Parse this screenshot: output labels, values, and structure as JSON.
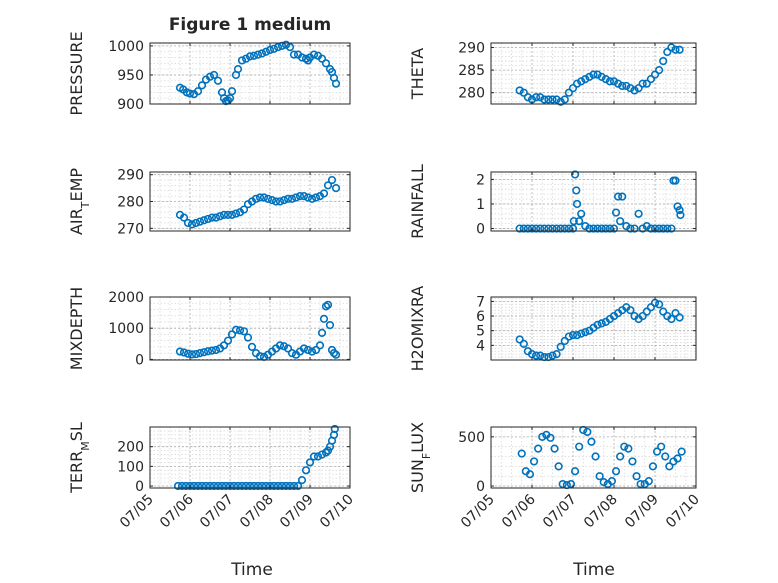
{
  "title": "Figure 1 medium",
  "colors": {
    "marker": "#0072BD",
    "axis": "#262626",
    "grid": "#b0b0b0",
    "minorGrid": "#d8d8d8"
  },
  "xaxis": {
    "ticks": [
      5,
      6,
      7,
      8,
      9,
      10
    ],
    "tick_labels": [
      "07/05",
      "07/06",
      "07/07",
      "07/08",
      "07/09",
      "07/10"
    ],
    "label": "Time",
    "range": [
      5,
      10
    ]
  },
  "chart_data": [
    {
      "type": "scatter",
      "ylabel": "PRESSURE",
      "ylim": [
        900,
        1005
      ],
      "yticks": [
        900,
        950,
        1000
      ],
      "ytick_labels": [
        "900",
        "950",
        "1000"
      ],
      "grid": true,
      "x": [
        5.75,
        5.83,
        5.92,
        6.0,
        6.1,
        6.2,
        6.3,
        6.4,
        6.5,
        6.6,
        6.7,
        6.8,
        6.85,
        6.9,
        6.95,
        7.0,
        7.05,
        7.15,
        7.2,
        7.3,
        7.4,
        7.5,
        7.6,
        7.7,
        7.8,
        7.9,
        8.0,
        8.1,
        8.2,
        8.3,
        8.4,
        8.5,
        8.6,
        8.7,
        8.8,
        8.9,
        8.95,
        9.0,
        9.1,
        9.2,
        9.3,
        9.4,
        9.5,
        9.55,
        9.6,
        9.65
      ],
      "y": [
        928,
        925,
        920,
        918,
        917,
        922,
        932,
        942,
        947,
        950,
        940,
        920,
        910,
        905,
        906,
        910,
        922,
        950,
        960,
        975,
        978,
        982,
        983,
        985,
        987,
        990,
        993,
        995,
        998,
        1000,
        1002,
        998,
        985,
        985,
        980,
        978,
        975,
        980,
        985,
        983,
        978,
        970,
        960,
        955,
        945,
        935
      ]
    },
    {
      "type": "scatter",
      "ylabel": "THETA",
      "ylim": [
        277.5,
        291
      ],
      "yticks": [
        280,
        285,
        290
      ],
      "ytick_labels": [
        "280",
        "285",
        "290"
      ],
      "grid": true,
      "x": [
        5.7,
        5.8,
        5.9,
        6.0,
        6.1,
        6.2,
        6.3,
        6.4,
        6.5,
        6.6,
        6.7,
        6.8,
        6.9,
        7.0,
        7.1,
        7.2,
        7.3,
        7.4,
        7.5,
        7.6,
        7.7,
        7.8,
        7.9,
        8.0,
        8.1,
        8.2,
        8.3,
        8.4,
        8.5,
        8.6,
        8.7,
        8.8,
        8.9,
        9.0,
        9.1,
        9.2,
        9.3,
        9.4,
        9.5,
        9.6
      ],
      "y": [
        280.5,
        280,
        279,
        278.5,
        279,
        279,
        278.5,
        278.5,
        278.5,
        278.5,
        278,
        278.5,
        280,
        281,
        282,
        282.5,
        283,
        283.5,
        284,
        284,
        283.5,
        283,
        282.5,
        282.5,
        282,
        281.5,
        281.5,
        281,
        280.5,
        281,
        282,
        282,
        283,
        284,
        285,
        287,
        289,
        290,
        289.5,
        289.5
      ]
    },
    {
      "type": "scatter",
      "ylabel": "AIR_TEMP",
      "ylim": [
        269,
        291
      ],
      "yticks": [
        270,
        280,
        290
      ],
      "ytick_labels": [
        "270",
        "280",
        "290"
      ],
      "grid": true,
      "x": [
        5.75,
        5.85,
        5.95,
        6.05,
        6.15,
        6.25,
        6.35,
        6.45,
        6.55,
        6.65,
        6.75,
        6.85,
        6.95,
        7.05,
        7.15,
        7.25,
        7.35,
        7.45,
        7.55,
        7.65,
        7.75,
        7.85,
        7.95,
        8.05,
        8.15,
        8.25,
        8.35,
        8.45,
        8.55,
        8.65,
        8.75,
        8.85,
        8.95,
        9.05,
        9.15,
        9.25,
        9.35,
        9.45,
        9.55,
        9.65
      ],
      "y": [
        275,
        274,
        272,
        271.5,
        272,
        272.5,
        273,
        273.5,
        274,
        274,
        274.5,
        275,
        275,
        275,
        275.5,
        276,
        277,
        279,
        280,
        281,
        281.5,
        281.5,
        281,
        280.5,
        280,
        280,
        280.5,
        281,
        281,
        281.5,
        282,
        282,
        281.5,
        281,
        281.5,
        282,
        283,
        286,
        288,
        285
      ]
    },
    {
      "type": "scatter",
      "ylabel": "RAINFALL",
      "ylim": [
        -0.1,
        2.3
      ],
      "yticks": [
        0,
        1,
        2
      ],
      "ytick_labels": [
        "0",
        "1",
        "2"
      ],
      "grid": true,
      "x": [
        5.7,
        5.8,
        5.9,
        6.0,
        6.1,
        6.2,
        6.3,
        6.4,
        6.5,
        6.6,
        6.7,
        6.8,
        6.9,
        7.0,
        7.02,
        7.05,
        7.08,
        7.1,
        7.15,
        7.2,
        7.3,
        7.4,
        7.5,
        7.6,
        7.7,
        7.8,
        7.9,
        8.0,
        8.05,
        8.1,
        8.15,
        8.2,
        8.3,
        8.4,
        8.5,
        8.6,
        8.7,
        8.8,
        8.9,
        9.0,
        9.1,
        9.2,
        9.3,
        9.4,
        9.45,
        9.5,
        9.55,
        9.6,
        9.62
      ],
      "y": [
        0,
        0,
        0,
        0,
        0,
        0,
        0,
        0,
        0,
        0,
        0,
        0,
        0,
        0,
        0.3,
        2.2,
        1.55,
        1.0,
        0.3,
        0.6,
        0.1,
        0,
        0,
        0,
        0,
        0,
        0,
        0,
        0.65,
        1.3,
        0.3,
        1.3,
        0.1,
        0,
        0,
        0.6,
        0,
        0.1,
        0,
        0,
        0,
        0,
        0,
        0,
        1.95,
        1.95,
        0.9,
        0.75,
        0.55
      ]
    },
    {
      "type": "scatter",
      "ylabel": "MIXDEPTH",
      "ylim": [
        -20,
        2000
      ],
      "yticks": [
        0,
        1000,
        2000
      ],
      "ytick_labels": [
        "0",
        "1000",
        "2000"
      ],
      "grid": true,
      "x": [
        5.75,
        5.85,
        5.95,
        6.05,
        6.15,
        6.25,
        6.35,
        6.45,
        6.55,
        6.65,
        6.75,
        6.85,
        6.95,
        7.05,
        7.15,
        7.25,
        7.35,
        7.45,
        7.55,
        7.65,
        7.75,
        7.85,
        7.95,
        8.05,
        8.15,
        8.25,
        8.35,
        8.45,
        8.55,
        8.65,
        8.75,
        8.85,
        8.95,
        9.05,
        9.15,
        9.25,
        9.3,
        9.35,
        9.4,
        9.45,
        9.5,
        9.55,
        9.6,
        9.65
      ],
      "y": [
        250,
        220,
        180,
        160,
        170,
        200,
        230,
        260,
        280,
        300,
        350,
        450,
        600,
        800,
        950,
        930,
        900,
        700,
        400,
        200,
        100,
        80,
        150,
        250,
        350,
        450,
        420,
        350,
        200,
        150,
        250,
        350,
        300,
        250,
        300,
        450,
        850,
        1300,
        1700,
        1750,
        1100,
        300,
        200,
        150
      ]
    },
    {
      "type": "scatter",
      "ylabel": "H2OMIXRA",
      "ylim": [
        3,
        7.3
      ],
      "yticks": [
        4,
        5,
        6,
        7
      ],
      "ytick_labels": [
        "4",
        "5",
        "6",
        "7"
      ],
      "grid": true,
      "x": [
        5.7,
        5.8,
        5.9,
        6.0,
        6.1,
        6.2,
        6.3,
        6.4,
        6.5,
        6.6,
        6.7,
        6.8,
        6.9,
        7.0,
        7.1,
        7.2,
        7.3,
        7.4,
        7.5,
        7.6,
        7.7,
        7.8,
        7.9,
        8.0,
        8.1,
        8.2,
        8.3,
        8.4,
        8.5,
        8.6,
        8.7,
        8.8,
        8.9,
        9.0,
        9.1,
        9.2,
        9.3,
        9.4,
        9.5,
        9.6
      ],
      "y": [
        4.4,
        4.1,
        3.6,
        3.4,
        3.3,
        3.3,
        3.2,
        3.2,
        3.3,
        3.4,
        3.9,
        4.3,
        4.6,
        4.7,
        4.7,
        4.8,
        4.9,
        5.0,
        5.2,
        5.4,
        5.5,
        5.6,
        5.8,
        6.0,
        6.2,
        6.4,
        6.6,
        6.4,
        6.0,
        5.8,
        6.0,
        6.3,
        6.6,
        6.9,
        6.8,
        6.3,
        6.0,
        5.8,
        6.2,
        5.9
      ]
    },
    {
      "type": "scatter",
      "ylabel": "TERR_MSL",
      "ylim": [
        -10,
        300
      ],
      "yticks": [
        0,
        100,
        200
      ],
      "ytick_labels": [
        "0",
        "100",
        "200"
      ],
      "grid": true,
      "x": [
        5.7,
        5.8,
        5.9,
        6.0,
        6.1,
        6.2,
        6.3,
        6.4,
        6.5,
        6.6,
        6.7,
        6.8,
        6.9,
        7.0,
        7.1,
        7.2,
        7.3,
        7.4,
        7.5,
        7.6,
        7.7,
        7.8,
        7.9,
        8.0,
        8.1,
        8.2,
        8.3,
        8.4,
        8.5,
        8.6,
        8.7,
        8.8,
        8.9,
        9.0,
        9.1,
        9.2,
        9.3,
        9.4,
        9.45,
        9.5,
        9.55,
        9.6,
        9.62
      ],
      "y": [
        0,
        0,
        0,
        0,
        0,
        0,
        0,
        0,
        0,
        0,
        0,
        0,
        0,
        0,
        0,
        0,
        0,
        0,
        0,
        0,
        0,
        0,
        0,
        0,
        0,
        0,
        0,
        0,
        0,
        0,
        0,
        30,
        80,
        120,
        150,
        150,
        160,
        170,
        180,
        200,
        230,
        260,
        290
      ]
    },
    {
      "type": "scatter",
      "ylabel": "SUN_FLUX",
      "ylim": [
        -20,
        600
      ],
      "yticks": [
        0,
        500
      ],
      "ytick_labels": [
        "0",
        "500"
      ],
      "grid": true,
      "x": [
        5.75,
        5.85,
        5.95,
        6.05,
        6.15,
        6.25,
        6.35,
        6.45,
        6.55,
        6.65,
        6.75,
        6.85,
        6.95,
        7.05,
        7.15,
        7.25,
        7.35,
        7.45,
        7.55,
        7.65,
        7.75,
        7.85,
        7.95,
        8.05,
        8.15,
        8.25,
        8.35,
        8.45,
        8.55,
        8.65,
        8.75,
        8.85,
        8.95,
        9.05,
        9.15,
        9.25,
        9.35,
        9.45,
        9.55,
        9.65
      ],
      "y": [
        330,
        150,
        120,
        250,
        380,
        500,
        520,
        490,
        380,
        200,
        20,
        10,
        20,
        150,
        400,
        570,
        550,
        450,
        300,
        100,
        40,
        20,
        50,
        150,
        300,
        400,
        380,
        250,
        100,
        20,
        20,
        50,
        200,
        350,
        400,
        300,
        200,
        250,
        280,
        350
      ]
    }
  ]
}
